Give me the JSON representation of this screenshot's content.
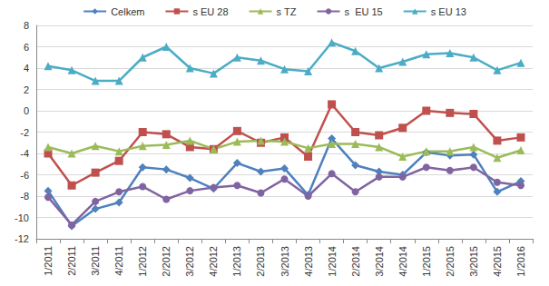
{
  "chart_data": {
    "type": "line",
    "categories": [
      "1/2011",
      "2/2011",
      "3/2011",
      "4/2011",
      "1/2012",
      "2/2012",
      "3/2012",
      "4/2012",
      "1/2013",
      "2/2013",
      "3/2013",
      "4/2013",
      "1/2014",
      "2/2014",
      "3/2014",
      "4/2014",
      "1/2015",
      "2/2015",
      "3/2015",
      "4/2015",
      "1/2016"
    ],
    "series": [
      {
        "name": "Celkem",
        "color": "#4F81BD",
        "marker": "diamond",
        "values": [
          -7.5,
          -10.8,
          -9.2,
          -8.6,
          -5.3,
          -5.5,
          -6.3,
          -7.3,
          -4.9,
          -5.7,
          -5.4,
          -7.9,
          -2.6,
          -5.1,
          -5.7,
          -6.0,
          -3.9,
          -4.2,
          -4.1,
          -7.6,
          -6.6
        ]
      },
      {
        "name": "s EU 28",
        "color": "#C0504D",
        "marker": "square",
        "values": [
          -4.0,
          -7.0,
          -5.8,
          -4.7,
          -2.0,
          -2.2,
          -3.4,
          -3.6,
          -1.9,
          -3.0,
          -2.5,
          -4.3,
          0.6,
          -2.0,
          -2.3,
          -1.6,
          0.0,
          -0.2,
          -0.3,
          -2.8,
          -2.5
        ]
      },
      {
        "name": "s TZ",
        "color": "#9BBB59",
        "marker": "triangle",
        "values": [
          -3.4,
          -4.0,
          -3.3,
          -3.8,
          -3.3,
          -3.2,
          -2.8,
          -3.6,
          -2.9,
          -2.8,
          -2.9,
          -3.5,
          -3.1,
          -3.1,
          -3.4,
          -4.3,
          -3.8,
          -3.8,
          -3.4,
          -4.4,
          -3.7
        ]
      },
      {
        "name": "s  EU 15",
        "color": "#8064A2",
        "marker": "circle",
        "values": [
          -8.1,
          -10.7,
          -8.5,
          -7.6,
          -7.1,
          -8.3,
          -7.5,
          -7.2,
          -7.0,
          -7.7,
          -6.4,
          -8.0,
          -5.9,
          -7.6,
          -6.2,
          -6.2,
          -5.3,
          -5.6,
          -5.3,
          -6.7,
          -7.0
        ]
      },
      {
        "name": "s EU 13",
        "color": "#4BACC6",
        "marker": "triangle",
        "values": [
          4.2,
          3.8,
          2.8,
          2.8,
          5.0,
          6.0,
          4.0,
          3.5,
          5.0,
          4.7,
          3.9,
          3.7,
          6.4,
          5.6,
          4.0,
          4.6,
          5.3,
          5.4,
          5.0,
          3.8,
          4.5
        ]
      }
    ],
    "ylim": [
      -12,
      8
    ],
    "yticks": [
      -12,
      -10,
      -8,
      -6,
      -4,
      -2,
      0,
      2,
      4,
      6,
      8
    ],
    "grid": true,
    "legend": "top"
  }
}
